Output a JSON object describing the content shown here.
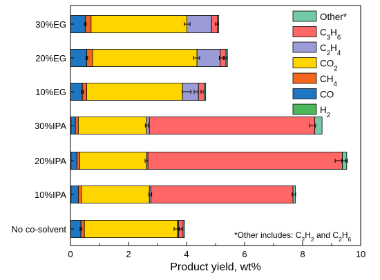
{
  "chart_data": {
    "type": "bar",
    "orientation": "horizontal",
    "stacked": true,
    "xlabel": "Product yield, wt%",
    "xlim": [
      0,
      10
    ],
    "xticks": [
      0,
      2,
      4,
      6,
      8,
      10
    ],
    "grid": false,
    "legend_position": "top-right",
    "categories": [
      "30%EG",
      "20%EG",
      "10%EG",
      "30%IPA",
      "20%IPA",
      "10%IPA",
      "No co-solvent"
    ],
    "series": [
      {
        "name": "H2",
        "values": [
          0.01,
          0.01,
          0.01,
          0.02,
          0.02,
          0.02,
          0.01
        ]
      },
      {
        "name": "CO",
        "values": [
          0.5,
          0.55,
          0.4,
          0.15,
          0.2,
          0.25,
          0.35
        ]
      },
      {
        "name": "CH4",
        "values": [
          0.2,
          0.2,
          0.15,
          0.1,
          0.1,
          0.1,
          0.12
        ]
      },
      {
        "name": "CO2",
        "values": [
          3.3,
          3.6,
          3.3,
          2.35,
          2.3,
          2.35,
          3.2
        ]
      },
      {
        "name": "C2H4",
        "values": [
          0.85,
          0.8,
          0.55,
          0.1,
          0.05,
          0.05,
          0.05
        ]
      },
      {
        "name": "C3H6",
        "values": [
          0.2,
          0.2,
          0.2,
          5.7,
          6.7,
          4.9,
          0.15
        ]
      },
      {
        "name": "Other*",
        "values": [
          0.05,
          0.05,
          0.05,
          0.25,
          0.15,
          0.08,
          0.05
        ]
      }
    ],
    "series_colors": [
      "#4cb85c",
      "#1f77c4",
      "#f4661e",
      "#ffd500",
      "#9b9bd6",
      "#ff6666",
      "#74c9a6"
    ],
    "error_bars": [
      [
        {
          "at": 0.51,
          "err": 0.03
        },
        {
          "at": 4.02,
          "err": 0.1
        },
        {
          "at": 5.05,
          "err": 0.05
        }
      ],
      [
        {
          "at": 0.56,
          "err": 0.03
        },
        {
          "at": 4.35,
          "err": 0.1
        },
        {
          "at": 5.2,
          "err": 0.07
        },
        {
          "at": 5.35,
          "err": 0.05
        }
      ],
      [
        {
          "at": 0.41,
          "err": 0.04
        },
        {
          "at": 4.0,
          "err": 0.15
        },
        {
          "at": 4.33,
          "err": 0.07
        },
        {
          "at": 4.55,
          "err": 0.05
        }
      ],
      [
        {
          "at": 2.63,
          "err": 0.05
        },
        {
          "at": 8.35,
          "err": 0.1
        }
      ],
      [
        {
          "at": 2.62,
          "err": 0.05
        },
        {
          "at": 9.3,
          "err": 0.18
        },
        {
          "at": 9.45,
          "err": 0.1
        }
      ],
      [
        {
          "at": 2.75,
          "err": 0.05
        },
        {
          "at": 7.7,
          "err": 0.06
        }
      ],
      [
        {
          "at": 0.36,
          "err": 0.03
        },
        {
          "at": 3.65,
          "err": 0.08
        },
        {
          "at": 3.8,
          "err": 0.05
        }
      ]
    ],
    "legend": [
      {
        "label": "Other*",
        "color": "#74c9a6"
      },
      {
        "label": "C",
        "sub": "3",
        "label2": "H",
        "sub2": "6",
        "color": "#ff6666"
      },
      {
        "label": "C",
        "sub": "2",
        "label2": "H",
        "sub2": "4",
        "color": "#9b9bd6"
      },
      {
        "label": "CO",
        "sub": "2",
        "label2": "",
        "sub2": "",
        "color": "#ffd500"
      },
      {
        "label": "CH",
        "sub": "4",
        "label2": "",
        "sub2": "",
        "color": "#f4661e"
      },
      {
        "label": "CO",
        "sub": "",
        "label2": "",
        "sub2": "",
        "color": "#1f77c4"
      },
      {
        "label": "H",
        "sub": "2",
        "label2": "",
        "sub2": "",
        "color": "#4cb85c"
      }
    ],
    "annotation": {
      "prefix": "*Other includes: C",
      "sub1": "2",
      "mid1": "H",
      "sub2": "2",
      "mid2": " and C",
      "sub3": "2",
      "mid3": "H",
      "sub4": "6"
    }
  }
}
